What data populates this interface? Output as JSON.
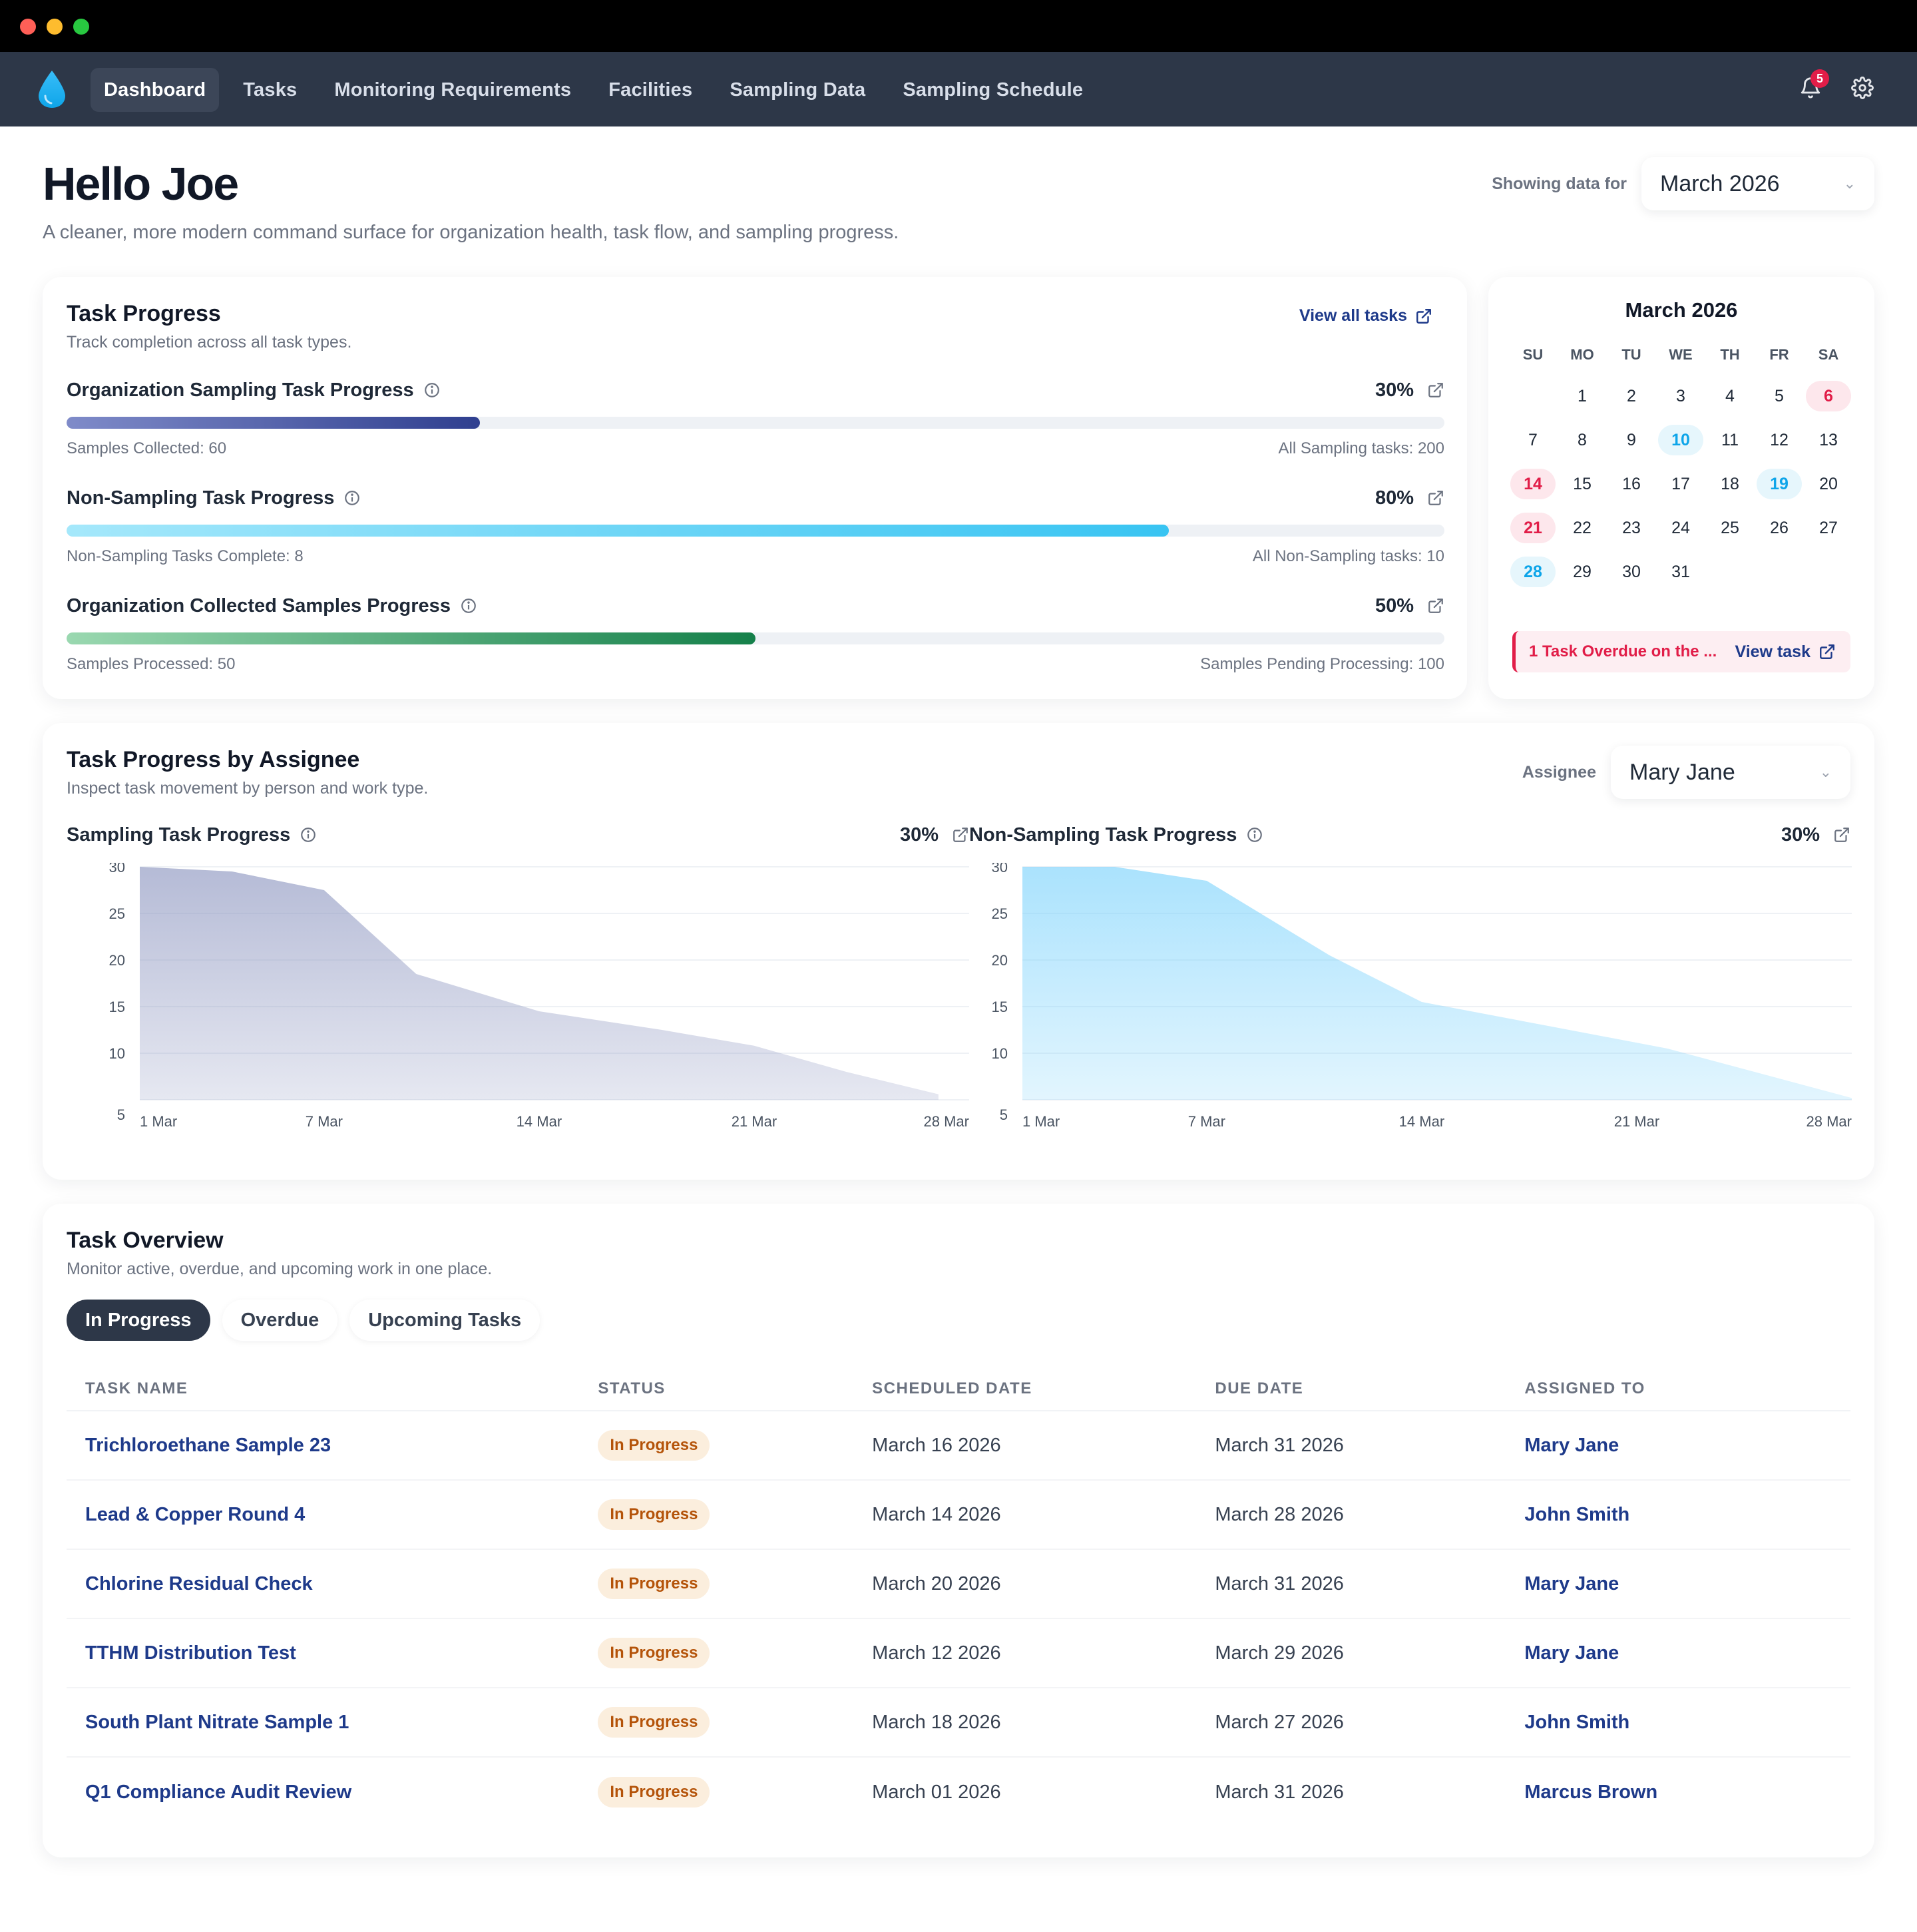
{
  "nav": {
    "items": [
      {
        "label": "Dashboard"
      },
      {
        "label": "Tasks"
      },
      {
        "label": "Monitoring Requirements"
      },
      {
        "label": "Facilities"
      },
      {
        "label": "Sampling Data"
      },
      {
        "label": "Sampling Schedule"
      }
    ],
    "notifications_count": "5"
  },
  "header": {
    "title": "Hello Joe",
    "subtitle": "A cleaner, more modern command surface for organization health, task flow, and sampling progress.",
    "showing_label": "Showing data for",
    "period": "March 2026"
  },
  "task_progress": {
    "title": "Task Progress",
    "subtitle": "Track completion across all task types.",
    "view_all": "View all tasks",
    "rows": [
      {
        "label": "Organization Sampling Task Progress",
        "pct": "30%",
        "fraction": 0.3,
        "left_note": "Samples Collected: 60",
        "right_note": "All Sampling tasks: 200"
      },
      {
        "label": "Non-Sampling Task Progress",
        "pct": "80%",
        "fraction": 0.8,
        "left_note": "Non-Sampling Tasks Complete: 8",
        "right_note": "All Non-Sampling tasks: 10"
      },
      {
        "label": "Organization Collected Samples Progress",
        "pct": "50%",
        "fraction": 0.5,
        "left_note": "Samples Processed: 50",
        "right_note": "Samples Pending Processing: 100"
      }
    ]
  },
  "calendar": {
    "title": "March 2026",
    "dow": [
      "SU",
      "MO",
      "TU",
      "WE",
      "TH",
      "FR",
      "SA"
    ],
    "overdue_text": "1 Task Overdue on the ...",
    "view_task": "View task"
  },
  "assignee_section": {
    "title": "Task Progress by Assignee",
    "subtitle": "Inspect task movement by person and work type.",
    "assignee_label": "Assignee",
    "assignee": "Mary Jane"
  },
  "chart_data": [
    {
      "type": "area",
      "title": "Sampling Task Progress",
      "pct": "30%",
      "x_ticks": [
        "1 Mar",
        "7 Mar",
        "14 Mar",
        "21 Mar",
        "28 Mar"
      ],
      "y_ticks": [
        "30",
        "25",
        "20",
        "15",
        "10",
        "5"
      ],
      "ylim": [
        5,
        30
      ],
      "x": [
        1,
        4,
        7,
        10,
        14,
        18,
        21,
        24,
        27
      ],
      "values": [
        30,
        29.5,
        27.5,
        18.5,
        14.5,
        12.5,
        10.8,
        8.0,
        5.6
      ],
      "xlim": [
        1,
        28
      ],
      "color": "#8d96c0"
    },
    {
      "type": "area",
      "title": "Non-Sampling Task Progress",
      "pct": "30%",
      "x_ticks": [
        "1 Mar",
        "7 Mar",
        "14 Mar",
        "21 Mar",
        "28 Mar"
      ],
      "y_ticks": [
        "30",
        "25",
        "20",
        "15",
        "10",
        "5"
      ],
      "ylim": [
        5,
        30
      ],
      "x": [
        1,
        4,
        7,
        11,
        14,
        18,
        22,
        28
      ],
      "values": [
        30,
        30,
        28.5,
        20.5,
        15.5,
        13,
        10.5,
        5.2
      ],
      "xlim": [
        1,
        28
      ],
      "color": "#7dd3fc"
    }
  ],
  "overview": {
    "title": "Task Overview",
    "subtitle": "Monitor active, overdue, and upcoming work in one place.",
    "tabs": [
      {
        "label": "In Progress"
      },
      {
        "label": "Overdue"
      },
      {
        "label": "Upcoming Tasks"
      }
    ],
    "columns": [
      "TASK NAME",
      "STATUS",
      "SCHEDULED DATE",
      "DUE DATE",
      "ASSIGNED TO"
    ],
    "rows": [
      {
        "name": "Trichloroethane Sample 23",
        "status": "In Progress",
        "scheduled": "March 16 2026",
        "due": "March 31 2026",
        "assignee": "Mary Jane"
      },
      {
        "name": "Lead & Copper Round 4",
        "status": "In Progress",
        "scheduled": "March 14 2026",
        "due": "March 28 2026",
        "assignee": "John Smith"
      },
      {
        "name": "Chlorine Residual Check",
        "status": "In Progress",
        "scheduled": "March 20 2026",
        "due": "March 31 2026",
        "assignee": "Mary Jane"
      },
      {
        "name": "TTHM Distribution Test",
        "status": "In Progress",
        "scheduled": "March 12 2026",
        "due": "March 29 2026",
        "assignee": "Mary Jane"
      },
      {
        "name": "South Plant Nitrate Sample 1",
        "status": "In Progress",
        "scheduled": "March 18 2026",
        "due": "March 27 2026",
        "assignee": "John Smith"
      },
      {
        "name": "Q1 Compliance Audit Review",
        "status": "In Progress",
        "scheduled": "March 01 2026",
        "due": "March 31 2026",
        "assignee": "Marcus Brown"
      }
    ]
  }
}
